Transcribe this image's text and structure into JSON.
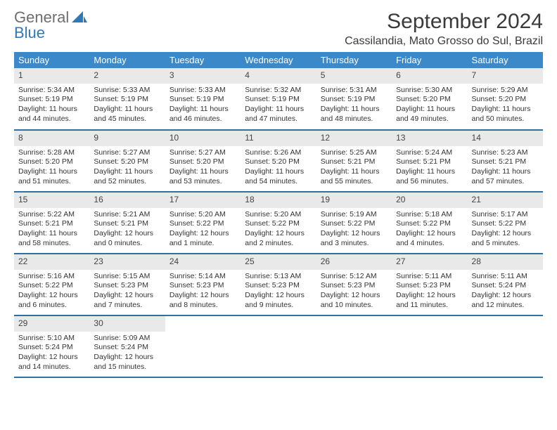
{
  "logo": {
    "top": "General",
    "bottom": "Blue"
  },
  "title": "September 2024",
  "location": "Cassilandia, Mato Grosso do Sul, Brazil",
  "colors": {
    "header_bg": "#3b89c9",
    "header_text": "#ffffff",
    "daynum_bg": "#e9e9e9",
    "row_border": "#2f6fa6",
    "logo_top": "#6e6e6e",
    "logo_bottom": "#2f79b9",
    "logo_icon": "#2f79b9"
  },
  "day_headers": [
    "Sunday",
    "Monday",
    "Tuesday",
    "Wednesday",
    "Thursday",
    "Friday",
    "Saturday"
  ],
  "weeks": [
    [
      {
        "num": "1",
        "sunrise": "Sunrise: 5:34 AM",
        "sunset": "Sunset: 5:19 PM",
        "daylight": "Daylight: 11 hours and 44 minutes."
      },
      {
        "num": "2",
        "sunrise": "Sunrise: 5:33 AM",
        "sunset": "Sunset: 5:19 PM",
        "daylight": "Daylight: 11 hours and 45 minutes."
      },
      {
        "num": "3",
        "sunrise": "Sunrise: 5:33 AM",
        "sunset": "Sunset: 5:19 PM",
        "daylight": "Daylight: 11 hours and 46 minutes."
      },
      {
        "num": "4",
        "sunrise": "Sunrise: 5:32 AM",
        "sunset": "Sunset: 5:19 PM",
        "daylight": "Daylight: 11 hours and 47 minutes."
      },
      {
        "num": "5",
        "sunrise": "Sunrise: 5:31 AM",
        "sunset": "Sunset: 5:19 PM",
        "daylight": "Daylight: 11 hours and 48 minutes."
      },
      {
        "num": "6",
        "sunrise": "Sunrise: 5:30 AM",
        "sunset": "Sunset: 5:20 PM",
        "daylight": "Daylight: 11 hours and 49 minutes."
      },
      {
        "num": "7",
        "sunrise": "Sunrise: 5:29 AM",
        "sunset": "Sunset: 5:20 PM",
        "daylight": "Daylight: 11 hours and 50 minutes."
      }
    ],
    [
      {
        "num": "8",
        "sunrise": "Sunrise: 5:28 AM",
        "sunset": "Sunset: 5:20 PM",
        "daylight": "Daylight: 11 hours and 51 minutes."
      },
      {
        "num": "9",
        "sunrise": "Sunrise: 5:27 AM",
        "sunset": "Sunset: 5:20 PM",
        "daylight": "Daylight: 11 hours and 52 minutes."
      },
      {
        "num": "10",
        "sunrise": "Sunrise: 5:27 AM",
        "sunset": "Sunset: 5:20 PM",
        "daylight": "Daylight: 11 hours and 53 minutes."
      },
      {
        "num": "11",
        "sunrise": "Sunrise: 5:26 AM",
        "sunset": "Sunset: 5:20 PM",
        "daylight": "Daylight: 11 hours and 54 minutes."
      },
      {
        "num": "12",
        "sunrise": "Sunrise: 5:25 AM",
        "sunset": "Sunset: 5:21 PM",
        "daylight": "Daylight: 11 hours and 55 minutes."
      },
      {
        "num": "13",
        "sunrise": "Sunrise: 5:24 AM",
        "sunset": "Sunset: 5:21 PM",
        "daylight": "Daylight: 11 hours and 56 minutes."
      },
      {
        "num": "14",
        "sunrise": "Sunrise: 5:23 AM",
        "sunset": "Sunset: 5:21 PM",
        "daylight": "Daylight: 11 hours and 57 minutes."
      }
    ],
    [
      {
        "num": "15",
        "sunrise": "Sunrise: 5:22 AM",
        "sunset": "Sunset: 5:21 PM",
        "daylight": "Daylight: 11 hours and 58 minutes."
      },
      {
        "num": "16",
        "sunrise": "Sunrise: 5:21 AM",
        "sunset": "Sunset: 5:21 PM",
        "daylight": "Daylight: 12 hours and 0 minutes."
      },
      {
        "num": "17",
        "sunrise": "Sunrise: 5:20 AM",
        "sunset": "Sunset: 5:22 PM",
        "daylight": "Daylight: 12 hours and 1 minute."
      },
      {
        "num": "18",
        "sunrise": "Sunrise: 5:20 AM",
        "sunset": "Sunset: 5:22 PM",
        "daylight": "Daylight: 12 hours and 2 minutes."
      },
      {
        "num": "19",
        "sunrise": "Sunrise: 5:19 AM",
        "sunset": "Sunset: 5:22 PM",
        "daylight": "Daylight: 12 hours and 3 minutes."
      },
      {
        "num": "20",
        "sunrise": "Sunrise: 5:18 AM",
        "sunset": "Sunset: 5:22 PM",
        "daylight": "Daylight: 12 hours and 4 minutes."
      },
      {
        "num": "21",
        "sunrise": "Sunrise: 5:17 AM",
        "sunset": "Sunset: 5:22 PM",
        "daylight": "Daylight: 12 hours and 5 minutes."
      }
    ],
    [
      {
        "num": "22",
        "sunrise": "Sunrise: 5:16 AM",
        "sunset": "Sunset: 5:22 PM",
        "daylight": "Daylight: 12 hours and 6 minutes."
      },
      {
        "num": "23",
        "sunrise": "Sunrise: 5:15 AM",
        "sunset": "Sunset: 5:23 PM",
        "daylight": "Daylight: 12 hours and 7 minutes."
      },
      {
        "num": "24",
        "sunrise": "Sunrise: 5:14 AM",
        "sunset": "Sunset: 5:23 PM",
        "daylight": "Daylight: 12 hours and 8 minutes."
      },
      {
        "num": "25",
        "sunrise": "Sunrise: 5:13 AM",
        "sunset": "Sunset: 5:23 PM",
        "daylight": "Daylight: 12 hours and 9 minutes."
      },
      {
        "num": "26",
        "sunrise": "Sunrise: 5:12 AM",
        "sunset": "Sunset: 5:23 PM",
        "daylight": "Daylight: 12 hours and 10 minutes."
      },
      {
        "num": "27",
        "sunrise": "Sunrise: 5:11 AM",
        "sunset": "Sunset: 5:23 PM",
        "daylight": "Daylight: 12 hours and 11 minutes."
      },
      {
        "num": "28",
        "sunrise": "Sunrise: 5:11 AM",
        "sunset": "Sunset: 5:24 PM",
        "daylight": "Daylight: 12 hours and 12 minutes."
      }
    ],
    [
      {
        "num": "29",
        "sunrise": "Sunrise: 5:10 AM",
        "sunset": "Sunset: 5:24 PM",
        "daylight": "Daylight: 12 hours and 14 minutes."
      },
      {
        "num": "30",
        "sunrise": "Sunrise: 5:09 AM",
        "sunset": "Sunset: 5:24 PM",
        "daylight": "Daylight: 12 hours and 15 minutes."
      },
      null,
      null,
      null,
      null,
      null
    ]
  ]
}
